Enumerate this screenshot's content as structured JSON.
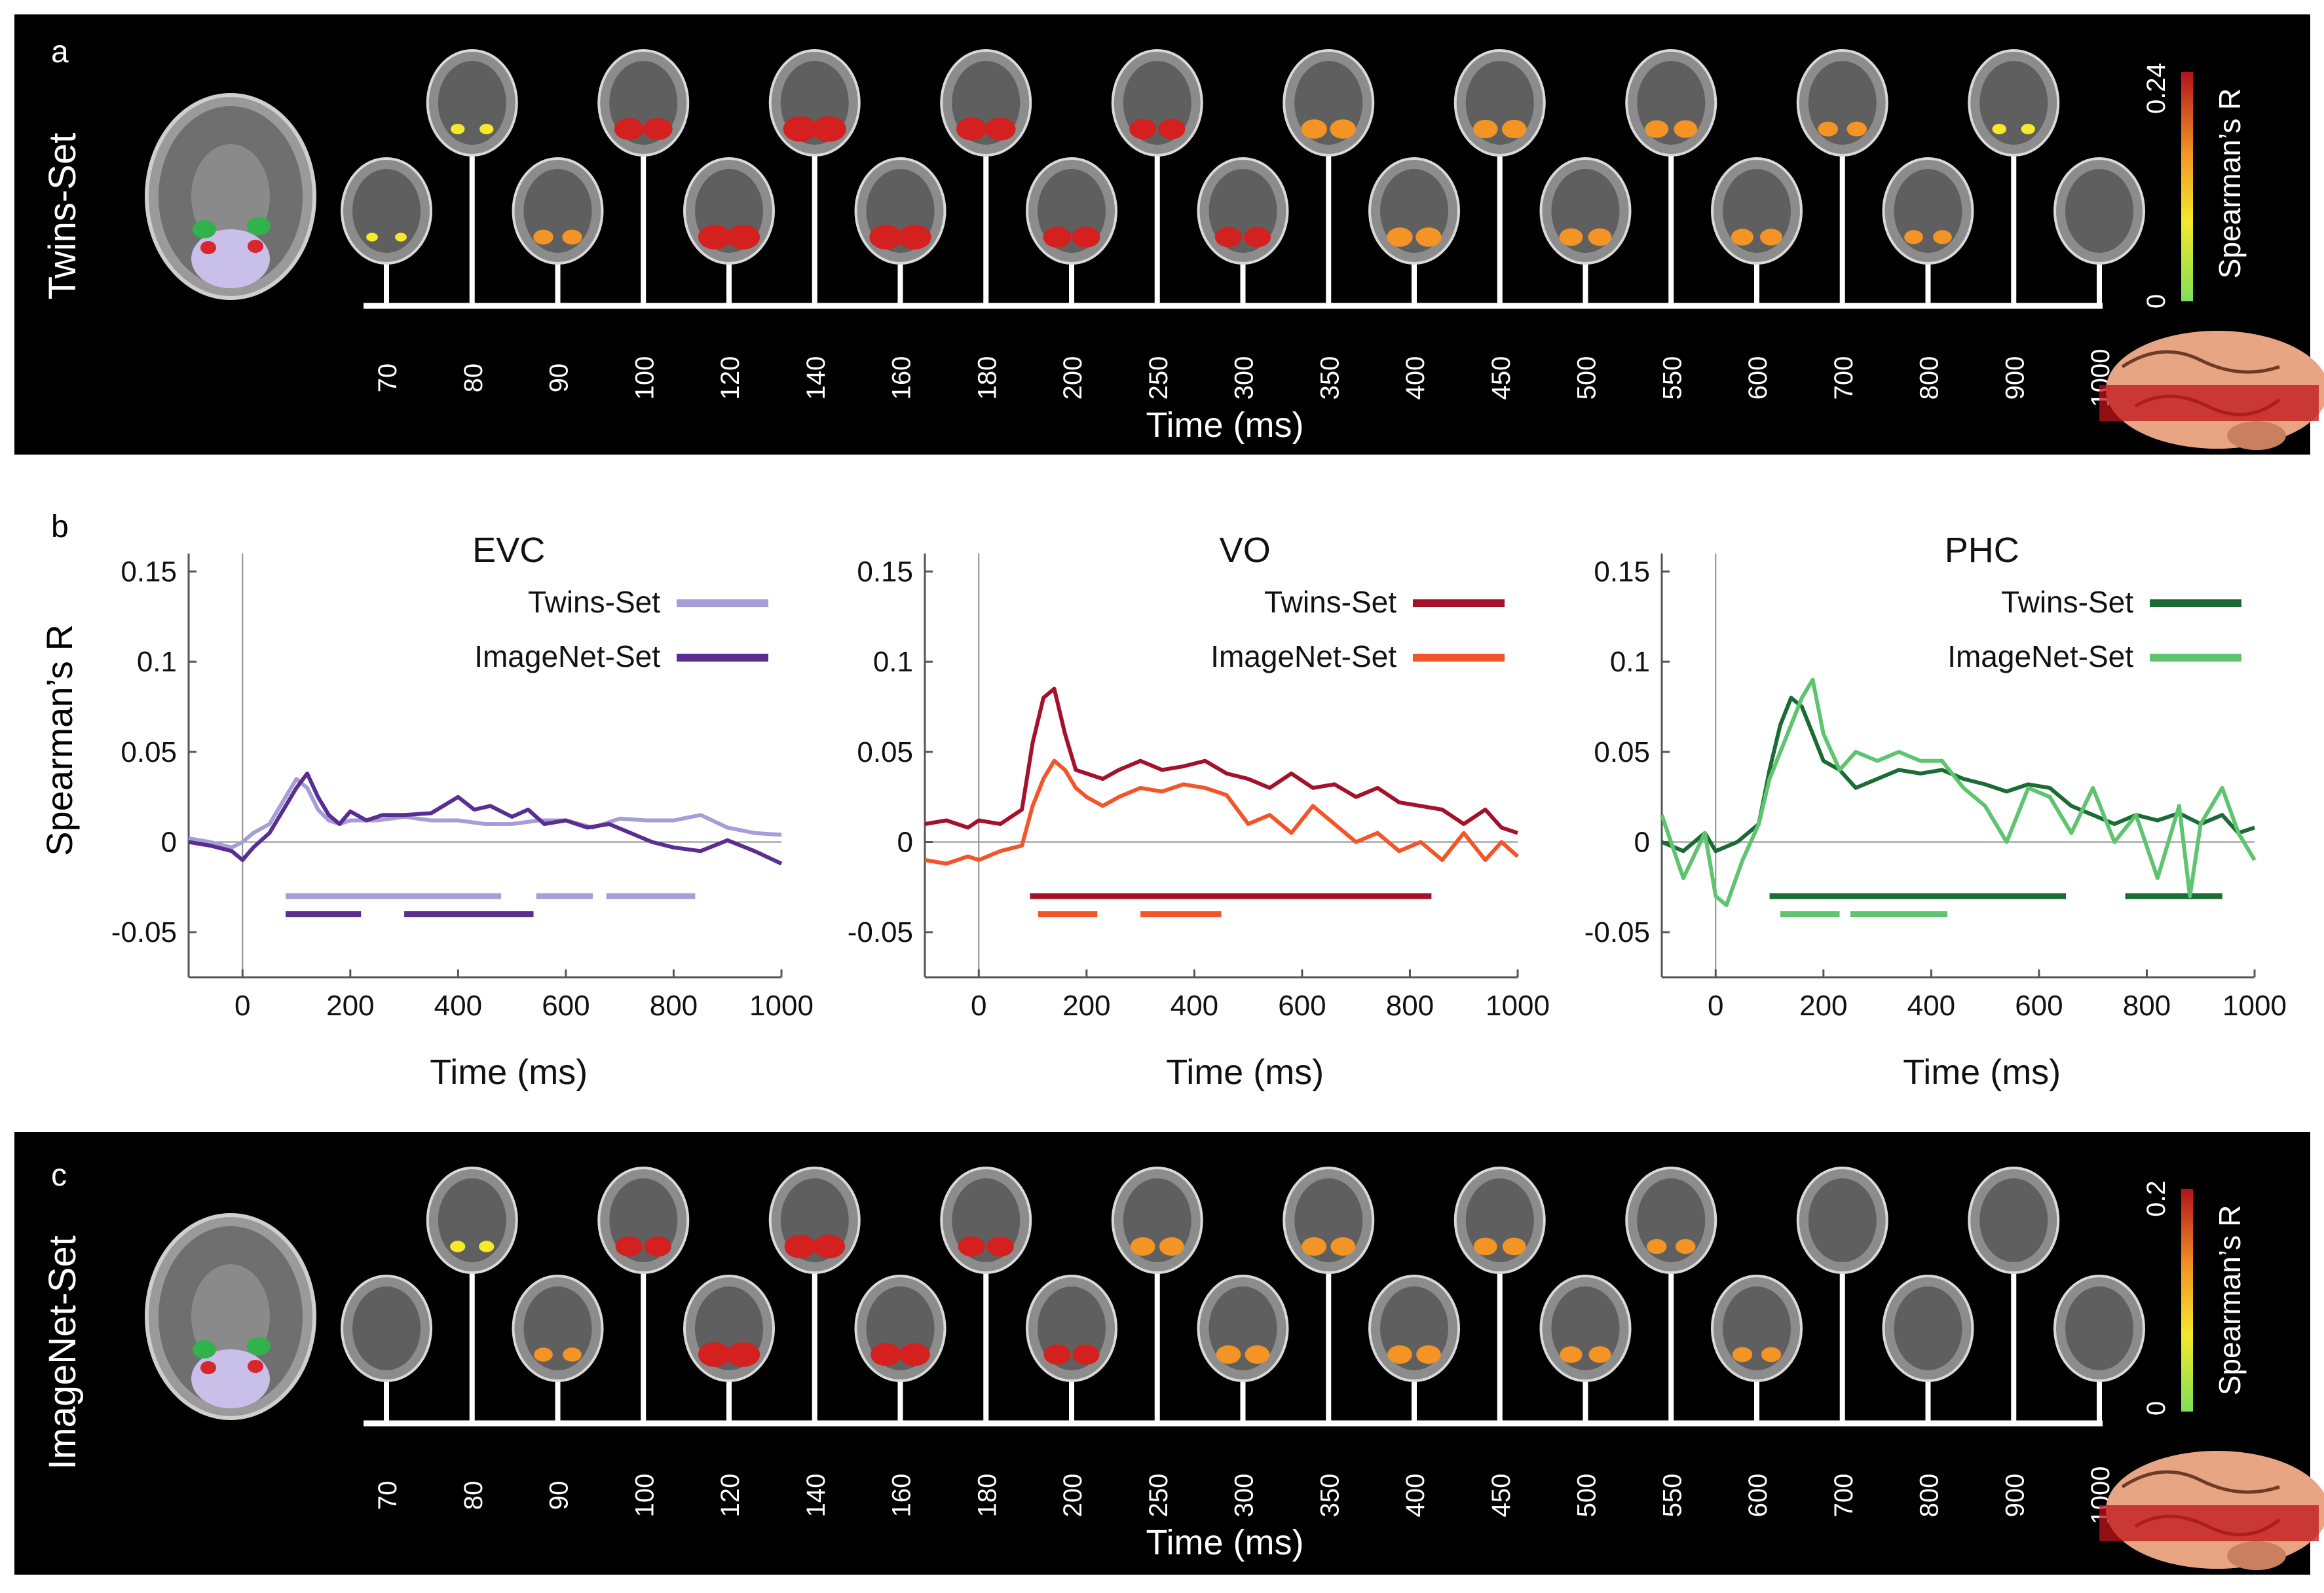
{
  "panel_a": {
    "letter": "a",
    "side_label": "Twins-Set",
    "time_ticks": [
      "70",
      "80",
      "90",
      "100",
      "120",
      "140",
      "160",
      "180",
      "200",
      "250",
      "300",
      "350",
      "400",
      "450",
      "500",
      "550",
      "600",
      "700",
      "800",
      "900",
      "1000"
    ],
    "intensity": [
      0.05,
      0.15,
      0.4,
      0.8,
      0.95,
      1.0,
      0.95,
      0.85,
      0.75,
      0.7,
      0.7,
      0.65,
      0.65,
      0.6,
      0.55,
      0.55,
      0.5,
      0.4,
      0.35,
      0.15,
      0.02
    ],
    "xlabel": "Time (ms)",
    "colorbar": {
      "max": "0.24",
      "min": "0",
      "label": "Spearman’s R"
    }
  },
  "panel_c": {
    "letter": "c",
    "side_label": "ImageNet-Set",
    "time_ticks": [
      "70",
      "80",
      "90",
      "100",
      "120",
      "140",
      "160",
      "180",
      "200",
      "250",
      "300",
      "350",
      "400",
      "450",
      "500",
      "550",
      "600",
      "700",
      "800",
      "900",
      "1000"
    ],
    "intensity": [
      0.0,
      0.2,
      0.35,
      0.7,
      0.95,
      0.9,
      0.85,
      0.7,
      0.7,
      0.6,
      0.6,
      0.6,
      0.6,
      0.55,
      0.5,
      0.4,
      0.4,
      0.0,
      0.0,
      0.0,
      0.0
    ],
    "xlabel": "Time (ms)",
    "colorbar": {
      "max": "0.2",
      "min": "0",
      "label": "Spearman’s R"
    }
  },
  "panel_b": {
    "letter": "b",
    "ylabel": "Spearman’s R"
  },
  "colors": {
    "bg_dark": "#000000",
    "evc_twins": "#a59fd6",
    "evc_imagenet": "#5a2d91",
    "vo_twins": "#a3122a",
    "vo_imagenet": "#f2552a",
    "phc_twins": "#1a6b35",
    "phc_imagenet": "#5ec46f"
  },
  "chart_data": [
    {
      "type": "line",
      "title": "EVC",
      "xlabel": "Time (ms)",
      "ylabel": "Spearman’s R",
      "xlim": [
        -100,
        1000
      ],
      "ylim": [
        -0.075,
        0.16
      ],
      "xticks": [
        "0",
        "200",
        "400",
        "600",
        "800",
        "1000"
      ],
      "yticks": [
        "0.15",
        "0.1",
        "0.05",
        "0",
        "-0.05"
      ],
      "series": [
        {
          "name": "Twins-Set",
          "color": "#a59fd6",
          "x": [
            -100,
            -60,
            -20,
            0,
            20,
            50,
            80,
            100,
            120,
            140,
            160,
            180,
            200,
            250,
            300,
            350,
            400,
            450,
            500,
            550,
            600,
            650,
            700,
            750,
            800,
            850,
            900,
            950,
            1000
          ],
          "y": [
            0.002,
            0.0,
            -0.003,
            0.0,
            0.005,
            0.01,
            0.025,
            0.035,
            0.03,
            0.018,
            0.012,
            0.01,
            0.012,
            0.012,
            0.014,
            0.012,
            0.012,
            0.01,
            0.01,
            0.012,
            0.012,
            0.008,
            0.013,
            0.012,
            0.012,
            0.015,
            0.008,
            0.005,
            0.004
          ],
          "significance": [
            [
              80,
              480
            ],
            [
              545,
              650
            ],
            [
              675,
              840
            ]
          ]
        },
        {
          "name": "ImageNet-Set",
          "color": "#5a2d91",
          "x": [
            -100,
            -60,
            -20,
            0,
            20,
            50,
            80,
            100,
            120,
            140,
            160,
            180,
            200,
            230,
            260,
            300,
            350,
            400,
            430,
            460,
            500,
            530,
            560,
            600,
            640,
            680,
            720,
            760,
            800,
            850,
            900,
            950,
            1000
          ],
          "y": [
            0.0,
            -0.002,
            -0.005,
            -0.01,
            -0.003,
            0.005,
            0.02,
            0.03,
            0.038,
            0.025,
            0.015,
            0.01,
            0.017,
            0.012,
            0.015,
            0.015,
            0.016,
            0.025,
            0.018,
            0.02,
            0.014,
            0.018,
            0.01,
            0.012,
            0.008,
            0.01,
            0.005,
            0.0,
            -0.003,
            -0.005,
            0.001,
            -0.005,
            -0.012
          ],
          "significance": [
            [
              80,
              220
            ],
            [
              300,
              540
            ]
          ]
        }
      ]
    },
    {
      "type": "line",
      "title": "VO",
      "xlabel": "Time (ms)",
      "ylabel": "",
      "xlim": [
        -100,
        1000
      ],
      "ylim": [
        -0.075,
        0.16
      ],
      "xticks": [
        "0",
        "200",
        "400",
        "600",
        "800",
        "1000"
      ],
      "yticks": [
        "0.15",
        "0.1",
        "0.05",
        "0",
        "-0.05"
      ],
      "series": [
        {
          "name": "Twins-Set",
          "color": "#a3122a",
          "x": [
            -100,
            -60,
            -20,
            0,
            40,
            80,
            100,
            120,
            140,
            160,
            180,
            200,
            230,
            260,
            300,
            340,
            380,
            420,
            460,
            500,
            540,
            580,
            620,
            660,
            700,
            740,
            780,
            820,
            860,
            900,
            940,
            970,
            1000
          ],
          "y": [
            0.01,
            0.012,
            0.008,
            0.012,
            0.01,
            0.018,
            0.055,
            0.08,
            0.085,
            0.06,
            0.04,
            0.038,
            0.035,
            0.04,
            0.045,
            0.04,
            0.042,
            0.045,
            0.038,
            0.035,
            0.03,
            0.038,
            0.03,
            0.032,
            0.025,
            0.03,
            0.022,
            0.02,
            0.018,
            0.01,
            0.018,
            0.008,
            0.005
          ],
          "significance": [
            [
              95,
              840
            ]
          ]
        },
        {
          "name": "ImageNet-Set",
          "color": "#f2552a",
          "x": [
            -100,
            -60,
            -20,
            0,
            40,
            80,
            100,
            120,
            140,
            160,
            180,
            200,
            230,
            260,
            300,
            340,
            380,
            420,
            460,
            500,
            540,
            580,
            620,
            660,
            700,
            740,
            780,
            820,
            860,
            900,
            940,
            970,
            1000
          ],
          "y": [
            -0.01,
            -0.012,
            -0.008,
            -0.01,
            -0.005,
            -0.002,
            0.02,
            0.035,
            0.045,
            0.04,
            0.03,
            0.025,
            0.02,
            0.025,
            0.03,
            0.028,
            0.032,
            0.03,
            0.026,
            0.01,
            0.015,
            0.005,
            0.02,
            0.01,
            0.0,
            0.005,
            -0.005,
            0.0,
            -0.01,
            0.005,
            -0.01,
            0.0,
            -0.008
          ],
          "significance": [
            [
              110,
              220
            ],
            [
              300,
              450
            ]
          ]
        }
      ]
    },
    {
      "type": "line",
      "title": "PHC",
      "xlabel": "Time (ms)",
      "ylabel": "",
      "xlim": [
        -100,
        1000
      ],
      "ylim": [
        -0.075,
        0.16
      ],
      "xticks": [
        "0",
        "200",
        "400",
        "600",
        "800",
        "1000"
      ],
      "yticks": [
        "0.15",
        "0.1",
        "0.05",
        "0",
        "-0.05"
      ],
      "series": [
        {
          "name": "Twins-Set",
          "color": "#1a6b35",
          "x": [
            -100,
            -60,
            -20,
            0,
            40,
            80,
            100,
            120,
            140,
            160,
            180,
            200,
            230,
            260,
            300,
            340,
            380,
            420,
            460,
            500,
            540,
            580,
            620,
            660,
            700,
            740,
            780,
            820,
            860,
            900,
            940,
            970,
            1000
          ],
          "y": [
            0.0,
            -0.005,
            0.005,
            -0.005,
            0.0,
            0.01,
            0.04,
            0.065,
            0.08,
            0.075,
            0.06,
            0.045,
            0.04,
            0.03,
            0.035,
            0.04,
            0.038,
            0.04,
            0.035,
            0.032,
            0.028,
            0.032,
            0.03,
            0.02,
            0.015,
            0.01,
            0.015,
            0.012,
            0.016,
            0.01,
            0.015,
            0.005,
            0.008
          ],
          "significance": [
            [
              100,
              650
            ],
            [
              760,
              940
            ]
          ]
        },
        {
          "name": "ImageNet-Set",
          "color": "#5ec46f",
          "x": [
            -100,
            -60,
            -20,
            0,
            20,
            50,
            80,
            100,
            120,
            140,
            160,
            180,
            200,
            230,
            260,
            300,
            340,
            380,
            420,
            460,
            500,
            540,
            580,
            620,
            660,
            700,
            740,
            780,
            820,
            860,
            880,
            900,
            940,
            970,
            1000
          ],
          "y": [
            0.015,
            -0.02,
            0.005,
            -0.03,
            -0.035,
            -0.01,
            0.01,
            0.035,
            0.05,
            0.065,
            0.08,
            0.09,
            0.06,
            0.04,
            0.05,
            0.045,
            0.05,
            0.045,
            0.045,
            0.03,
            0.02,
            0.0,
            0.03,
            0.025,
            0.005,
            0.03,
            0.0,
            0.015,
            -0.02,
            0.02,
            -0.03,
            0.01,
            0.03,
            0.005,
            -0.01
          ],
          "significance": [
            [
              120,
              230
            ],
            [
              250,
              430
            ]
          ]
        }
      ]
    }
  ]
}
